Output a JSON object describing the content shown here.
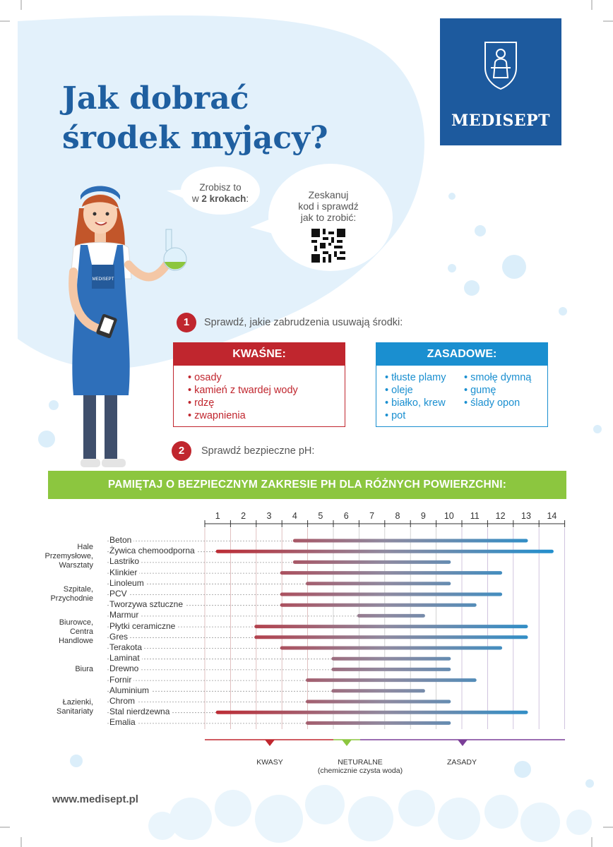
{
  "title": {
    "line1": "Jak dobrać",
    "line2": "środek myjący?"
  },
  "logo": {
    "name": "MEDISEPT"
  },
  "bubble1": {
    "line1": "Zrobisz to",
    "line2_prefix": "w ",
    "line2_bold": "2  krokach",
    "line2_suffix": ":"
  },
  "bubble2": {
    "line1": "Zeskanuj",
    "line2": "kod i sprawdź",
    "line3": "jak to zrobić:"
  },
  "apron_logo": "MEDISEPT",
  "step1": {
    "number": "1",
    "text": "Sprawdź, jakie zabrudzenia usuwają środki:"
  },
  "step2": {
    "number": "2",
    "text": "Sprawdź bezpieczne pH:"
  },
  "acidic": {
    "title": "KWAŚNE:",
    "items": [
      "osady",
      "kamień z twardej wody",
      "rdzę",
      "zwapnienia"
    ]
  },
  "alkaline": {
    "title": "ZASADOWE:",
    "col1": [
      "tłuste plamy",
      "oleje",
      "białko, krew",
      "pot"
    ],
    "col2": [
      "smołę dymną",
      "gumę",
      "ślady opon"
    ]
  },
  "banner": "PAMIĘTAJ O BEZPIECZNYM ZAKRESIE PH DLA RÓŻNYCH POWIERZCHNI:",
  "colors": {
    "acid": "#c0262e",
    "alkaline": "#1a8fd0",
    "neutral": "#8cc63f",
    "brand": "#1d5a9e"
  },
  "chart_data": {
    "type": "range",
    "x_ticks": [
      "1",
      "2",
      "3",
      "4",
      "5",
      "6",
      "7",
      "8",
      "9",
      "10",
      "11",
      "12",
      "13",
      "14"
    ],
    "groups": [
      {
        "label": [
          "Hale",
          "Przemysłowe,",
          "Warsztaty"
        ],
        "rows": [
          0,
          1,
          2,
          3
        ]
      },
      {
        "label": [
          "Szpitale,",
          "Przychodnie"
        ],
        "rows": [
          4,
          5,
          6
        ]
      },
      {
        "label": [
          "Biurowce,",
          "Centra",
          "Handlowe"
        ],
        "rows": [
          7,
          8,
          9,
          10
        ]
      },
      {
        "label": [
          "Biura"
        ],
        "rows": [
          11,
          12,
          13
        ]
      },
      {
        "label": [
          "Łazienki,",
          "Sanitariaty"
        ],
        "rows": [
          14,
          15,
          16,
          17
        ]
      }
    ],
    "surfaces": [
      {
        "name": "Beton",
        "min": 4,
        "max": 13
      },
      {
        "name": "Żywica chemoodporna",
        "min": 1,
        "max": 14
      },
      {
        "name": "Lastriko",
        "min": 4,
        "max": 10
      },
      {
        "name": "Klinkier",
        "min": 3.5,
        "max": 12
      },
      {
        "name": "Linoleum",
        "min": 4.5,
        "max": 10
      },
      {
        "name": "PCV",
        "min": 3.5,
        "max": 12
      },
      {
        "name": "Tworzywa sztuczne",
        "min": 3.5,
        "max": 11
      },
      {
        "name": "Marmur",
        "min": 6.5,
        "max": 9
      },
      {
        "name": "Płytki ceramiczne",
        "min": 2.5,
        "max": 13
      },
      {
        "name": "Gres",
        "min": 2.5,
        "max": 13
      },
      {
        "name": "Terakota",
        "min": 3.5,
        "max": 12
      },
      {
        "name": "Laminat",
        "min": 5.5,
        "max": 10
      },
      {
        "name": "Drewno",
        "min": 5.5,
        "max": 10
      },
      {
        "name": "Fornir",
        "min": 4.5,
        "max": 11
      },
      {
        "name": "Aluminium",
        "min": 5.5,
        "max": 9
      },
      {
        "name": "Chrom",
        "min": 4.5,
        "max": 10
      },
      {
        "name": "Stal nierdzewna",
        "min": 1,
        "max": 13
      },
      {
        "name": "Emalia",
        "min": 4.5,
        "max": 10
      }
    ],
    "legend": {
      "acid": "KWASY",
      "neutral_line1": "NETURALNE",
      "neutral_line2": "(chemicznie czysta woda)",
      "alkaline": "ZASADY"
    }
  },
  "url": "www.medisept.pl"
}
